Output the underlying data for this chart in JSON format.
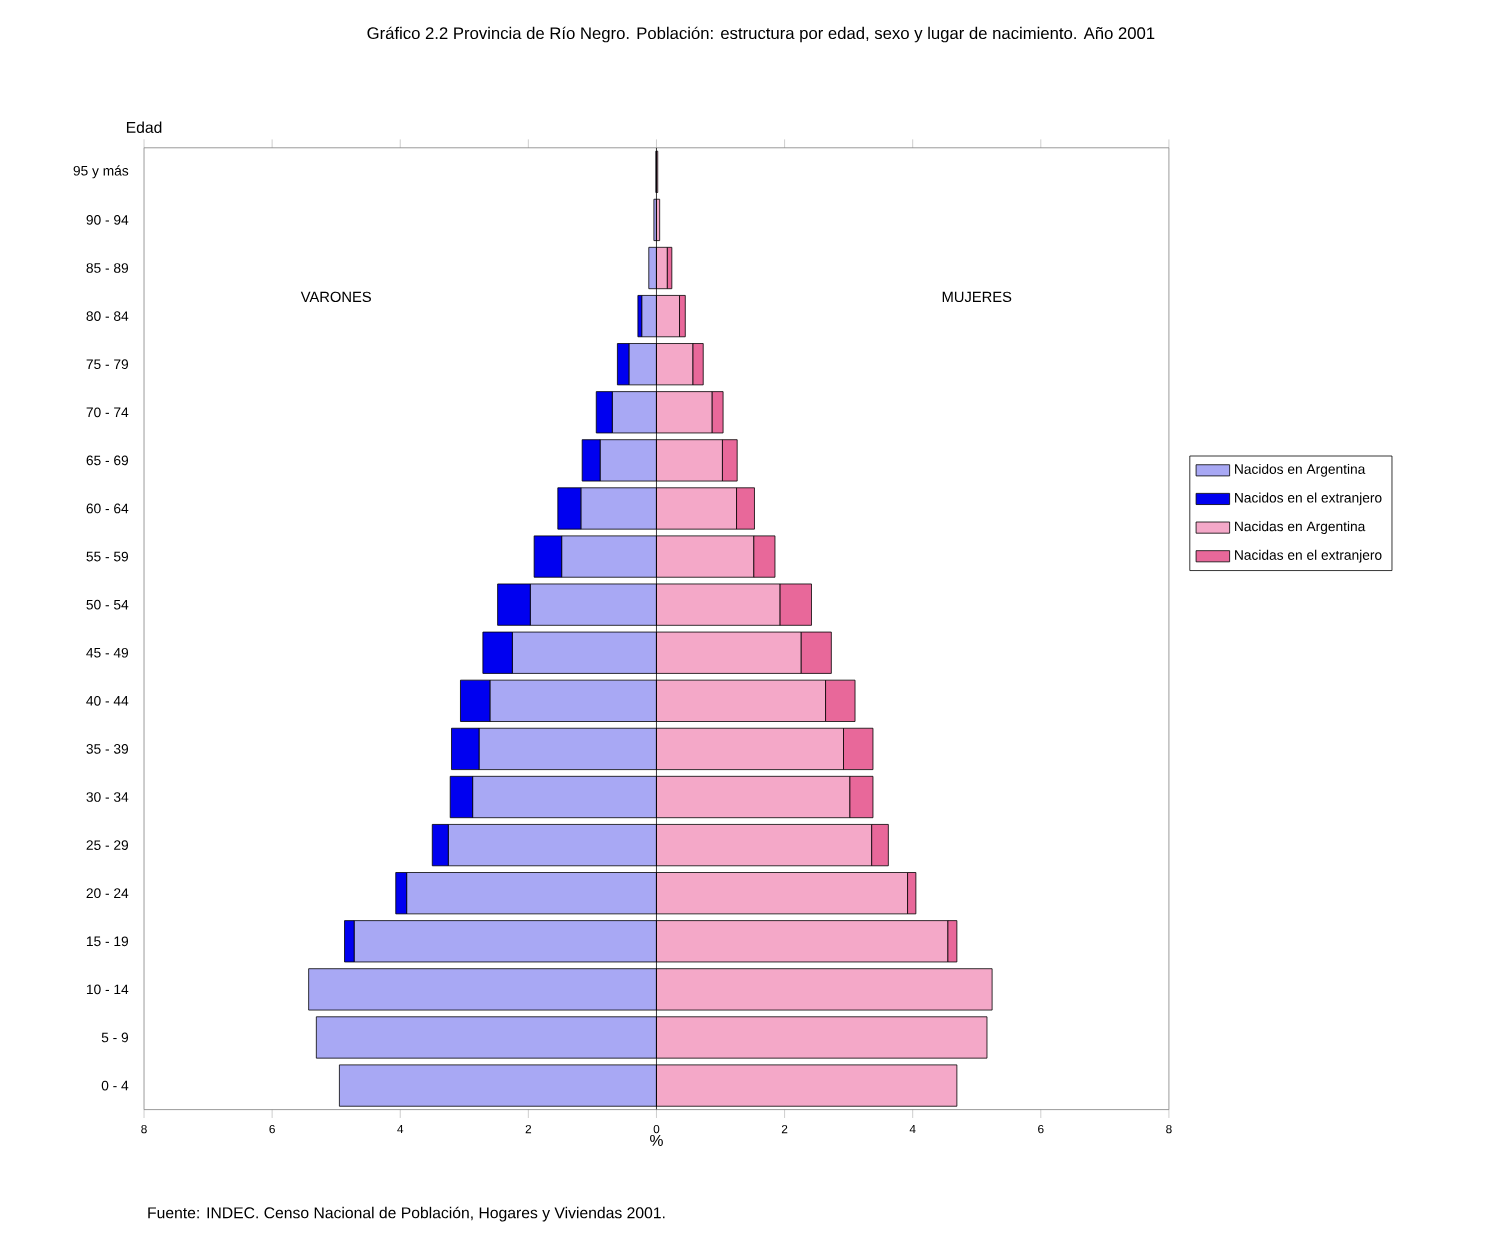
{
  "chart_data": {
    "type": "bar",
    "orientation": "horizontal",
    "stacked": true,
    "title": "Gráfico 2.2 Provincia de Río Negro. Población: estructura por edad, sexo y lugar de nacimiento. Año 2001",
    "xlabel": "%",
    "ylabel": "Edad",
    "categories": [
      "95 y más",
      "90 - 94",
      "85 - 89",
      "80 - 84",
      "75 - 79",
      "70 - 74",
      "65 - 69",
      "60 - 64",
      "55 - 59",
      "50 - 54",
      "45 - 49",
      "40 - 44",
      "35 - 39",
      "30 - 34",
      "25 - 29",
      "20 - 24",
      "15 - 19",
      "10 - 14",
      "5 - 9",
      "0 - 4"
    ],
    "series": [
      {
        "name": "Nacidos en Argentina",
        "color": "#a8a8f4",
        "values": [
          -0.01,
          -0.04,
          -0.12,
          -0.23,
          -0.43,
          -0.69,
          -0.88,
          -1.18,
          -1.48,
          -1.97,
          -2.25,
          -2.6,
          -2.77,
          -2.87,
          -3.25,
          -3.9,
          -4.72,
          -5.43,
          -5.31,
          -4.95
        ]
      },
      {
        "name": "Nacidos en el extranjero",
        "color": "#0000f0",
        "values": [
          0,
          0,
          0,
          -0.06,
          -0.18,
          -0.25,
          -0.28,
          -0.36,
          -0.43,
          -0.51,
          -0.46,
          -0.46,
          -0.43,
          -0.35,
          -0.25,
          -0.17,
          -0.15,
          0,
          0,
          0
        ]
      },
      {
        "name": "Nacidas en Argentina",
        "color": "#f4a8c8",
        "values": [
          0.02,
          0.05,
          0.17,
          0.36,
          0.57,
          0.87,
          1.03,
          1.25,
          1.52,
          1.93,
          2.26,
          2.64,
          2.92,
          3.02,
          3.36,
          3.92,
          4.55,
          5.24,
          5.16,
          4.69
        ]
      },
      {
        "name": "Nacidas en el extranjero",
        "color": "#e8689a",
        "values": [
          0,
          0,
          0.07,
          0.09,
          0.16,
          0.17,
          0.23,
          0.28,
          0.33,
          0.49,
          0.47,
          0.46,
          0.46,
          0.36,
          0.26,
          0.13,
          0.14,
          0,
          0,
          0
        ]
      }
    ],
    "xlim": [
      -8,
      8
    ],
    "xticks": [
      {
        "value": -8,
        "label": "8"
      },
      {
        "value": -6,
        "label": "6"
      },
      {
        "value": -4,
        "label": "4"
      },
      {
        "value": -2,
        "label": "2"
      },
      0,
      2,
      4,
      6,
      8
    ],
    "legend": "right",
    "annotations": [
      "VARONES",
      "MUJERES",
      "Fuente: INDEC. Censo Nacional de Población, Hogares y Viviendas 2001."
    ]
  }
}
